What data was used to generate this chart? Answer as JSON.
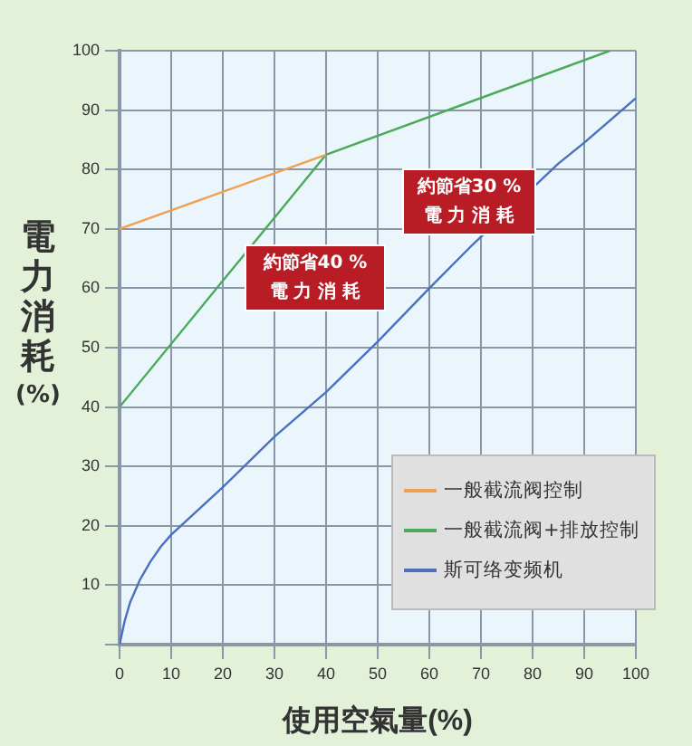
{
  "chart_data": {
    "type": "line",
    "xlabel": "使用空氣量(%)",
    "ylabel": "電力消耗(%)",
    "xlim": [
      0,
      100
    ],
    "xticks": [
      0,
      10,
      20,
      30,
      40,
      50,
      60,
      70,
      80,
      90,
      100
    ],
    "ylim": [
      0,
      100
    ],
    "yticks": [
      {
        "value": 0,
        "label": null
      },
      10,
      20,
      30,
      40,
      50,
      60,
      70,
      80,
      90,
      100
    ],
    "grid": true,
    "legend": "bottom right",
    "marker": "none",
    "line_style": "solid",
    "series": [
      {
        "name": "一般截流阀控制",
        "color": "#f0a050",
        "x": [
          0,
          40
        ],
        "values": [
          70,
          82.5
        ]
      },
      {
        "name": "一般截流阀+排放控制",
        "color": "#4aaa5a",
        "x": [
          0,
          40,
          95
        ],
        "values": [
          40,
          82.5,
          100
        ]
      },
      {
        "name": "斯可络变频机",
        "color": "#4a70c0",
        "x": [
          0,
          1,
          2,
          4,
          6,
          8,
          10,
          15,
          20,
          30,
          40,
          50,
          60,
          68,
          85,
          90,
          100
        ],
        "values": [
          0,
          4,
          7,
          11,
          14,
          16.5,
          18.5,
          22.5,
          26.5,
          35,
          42.5,
          51,
          60,
          67,
          81,
          84.5,
          92
        ]
      }
    ],
    "annotations": [
      "約節省30 %\n電 力 消 耗",
      "約節省40 %\n電 力 消 耗"
    ]
  }
}
